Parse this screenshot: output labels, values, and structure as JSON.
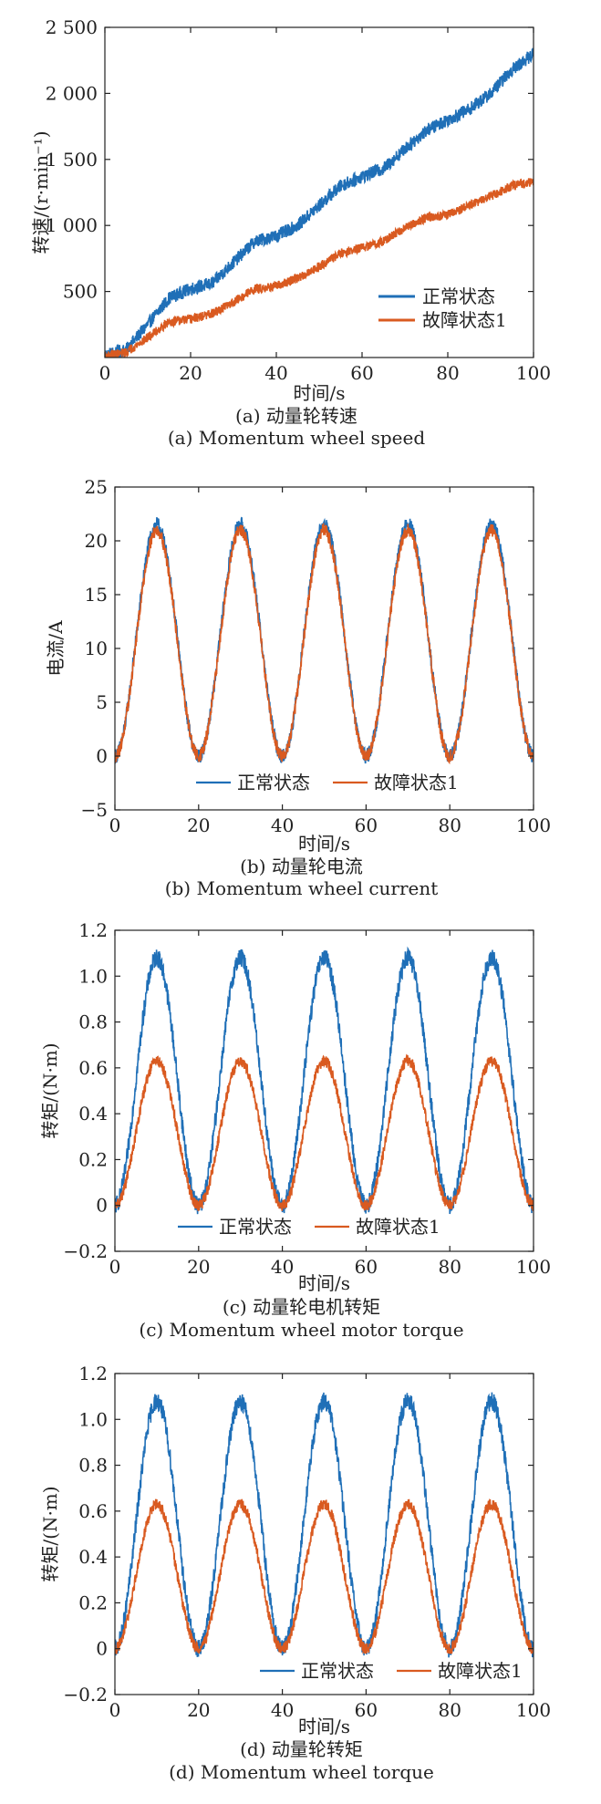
{
  "colors": {
    "normal": "#1f6fb7",
    "fault": "#d95a20",
    "axis": "#222222"
  },
  "chart_data": [
    {
      "type": "line",
      "panel": "a",
      "xlabel": "时间/s",
      "ylabel": "转速/(r·min⁻¹)",
      "xlim": [
        0,
        100
      ],
      "ylim": [
        0,
        2500
      ],
      "xticks": [
        0,
        20,
        40,
        60,
        80,
        100
      ],
      "yticks": [
        500,
        1000,
        1500,
        2000,
        2500
      ],
      "ytick_labels": [
        "500",
        "1 000",
        "1 500",
        "2 000",
        "2 500"
      ],
      "x": [
        0,
        5,
        10,
        15,
        20,
        25,
        30,
        35,
        40,
        45,
        50,
        55,
        60,
        65,
        70,
        75,
        80,
        85,
        90,
        95,
        100
      ],
      "series": [
        {
          "name": "正常状态",
          "values": [
            20,
            60,
            250,
            450,
            520,
            560,
            720,
            880,
            920,
            1000,
            1150,
            1300,
            1370,
            1430,
            1580,
            1720,
            1800,
            1880,
            2000,
            2180,
            2300
          ],
          "noise": 50
        },
        {
          "name": "故障状态1",
          "values": [
            10,
            40,
            150,
            270,
            290,
            330,
            420,
            520,
            540,
            600,
            690,
            790,
            830,
            880,
            980,
            1060,
            1080,
            1150,
            1220,
            1300,
            1330
          ],
          "noise": 35
        }
      ],
      "legend_position": "bottom-right",
      "caption_zh": "(a) 动量轮转速",
      "caption_en": "(a) Momentum wheel speed"
    },
    {
      "type": "line",
      "panel": "b",
      "xlabel": "时间/s",
      "ylabel": "电流/A",
      "xlim": [
        0,
        100
      ],
      "ylim": [
        -5,
        25
      ],
      "xticks": [
        0,
        20,
        40,
        60,
        80,
        100
      ],
      "yticks": [
        -5,
        0,
        5,
        10,
        15,
        20,
        25
      ],
      "ytick_labels": [
        "−5",
        "0",
        "5",
        "10",
        "15",
        "20",
        "25"
      ],
      "series": [
        {
          "name": "正常状态",
          "min": 0,
          "max": 21.5,
          "period": 20,
          "peak_at": 10,
          "noise": 0.7
        },
        {
          "name": "故障状态1",
          "min": 0,
          "max": 21.0,
          "period": 20,
          "peak_at": 10,
          "noise": 0.6
        }
      ],
      "legend_position": "bottom-center",
      "caption_zh": "(b) 动量轮电流",
      "caption_en": "(b) Momentum wheel current"
    },
    {
      "type": "line",
      "panel": "c",
      "xlabel": "时间/s",
      "ylabel": "转矩/(N·m)",
      "xlim": [
        0,
        100
      ],
      "ylim": [
        -0.2,
        1.2
      ],
      "xticks": [
        0,
        20,
        40,
        60,
        80,
        100
      ],
      "yticks": [
        -0.2,
        0,
        0.2,
        0.4,
        0.6,
        0.8,
        1.0,
        1.2
      ],
      "ytick_labels": [
        "−0.2",
        "0",
        "0.2",
        "0.4",
        "0.6",
        "0.8",
        "1.0",
        "1.2"
      ],
      "series": [
        {
          "name": "正常状态",
          "min": 0,
          "max": 1.08,
          "period": 20,
          "peak_at": 10,
          "noise": 0.04
        },
        {
          "name": "故障状态1",
          "min": 0,
          "max": 0.63,
          "period": 20,
          "peak_at": 10,
          "noise": 0.025
        }
      ],
      "legend_position": "bottom-center",
      "caption_zh": "(c) 动量轮电机转矩",
      "caption_en": "(c) Momentum wheel motor torque"
    },
    {
      "type": "line",
      "panel": "d",
      "xlabel": "时间/s",
      "ylabel": "转矩/(N·m)",
      "xlim": [
        0,
        100
      ],
      "ylim": [
        -0.2,
        1.2
      ],
      "xticks": [
        0,
        20,
        40,
        60,
        80,
        100
      ],
      "yticks": [
        -0.2,
        0,
        0.2,
        0.4,
        0.6,
        0.8,
        1.0,
        1.2
      ],
      "ytick_labels": [
        "−0.2",
        "0",
        "0.2",
        "0.4",
        "0.6",
        "0.8",
        "1.0",
        "1.2"
      ],
      "series": [
        {
          "name": "正常状态",
          "min": 0,
          "max": 1.08,
          "period": 20,
          "peak_at": 10,
          "noise": 0.04
        },
        {
          "name": "故障状态1",
          "min": 0,
          "max": 0.63,
          "period": 20,
          "peak_at": 10,
          "noise": 0.025
        }
      ],
      "legend_position": "bottom-right",
      "caption_zh": "(d) 动量轮转矩",
      "caption_en": "(d) Momentum wheel torque"
    }
  ]
}
